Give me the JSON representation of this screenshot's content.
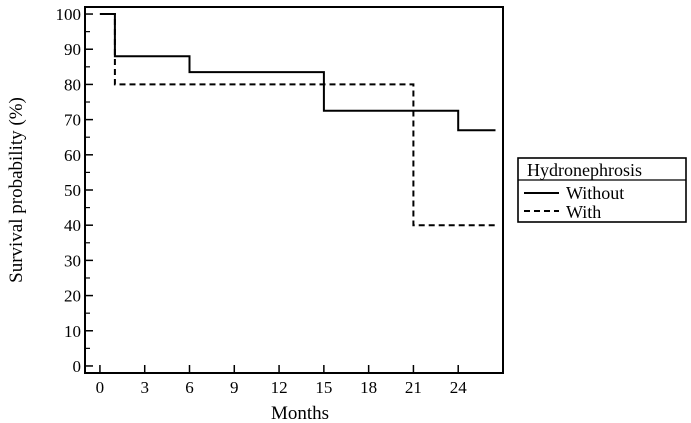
{
  "chart_data": {
    "type": "line",
    "subtype": "kaplan-meier-step",
    "title": "",
    "xlabel": "Months",
    "ylabel": "Survival probability (%)",
    "xlim": [
      -1,
      27
    ],
    "ylim": [
      -2,
      102
    ],
    "xticks": [
      0,
      3,
      6,
      9,
      12,
      15,
      18,
      21,
      24
    ],
    "yticks": [
      0,
      10,
      20,
      30,
      40,
      50,
      60,
      70,
      80,
      90,
      100
    ],
    "grid": false,
    "legend": {
      "title": "Hydronephrosis",
      "placement": "right"
    },
    "series": [
      {
        "name": "Without",
        "line_style": "solid",
        "color": "#000000",
        "x": [
          0,
          1,
          1,
          6,
          6,
          15,
          15,
          24,
          24,
          26.5
        ],
        "y": [
          100,
          100,
          88,
          88,
          83.5,
          83.5,
          72.5,
          72.5,
          67,
          67
        ]
      },
      {
        "name": "With",
        "line_style": "dashed",
        "color": "#000000",
        "x": [
          0,
          1,
          1,
          21,
          21,
          26.5
        ],
        "y": [
          100,
          100,
          80,
          80,
          40,
          40
        ]
      }
    ]
  }
}
